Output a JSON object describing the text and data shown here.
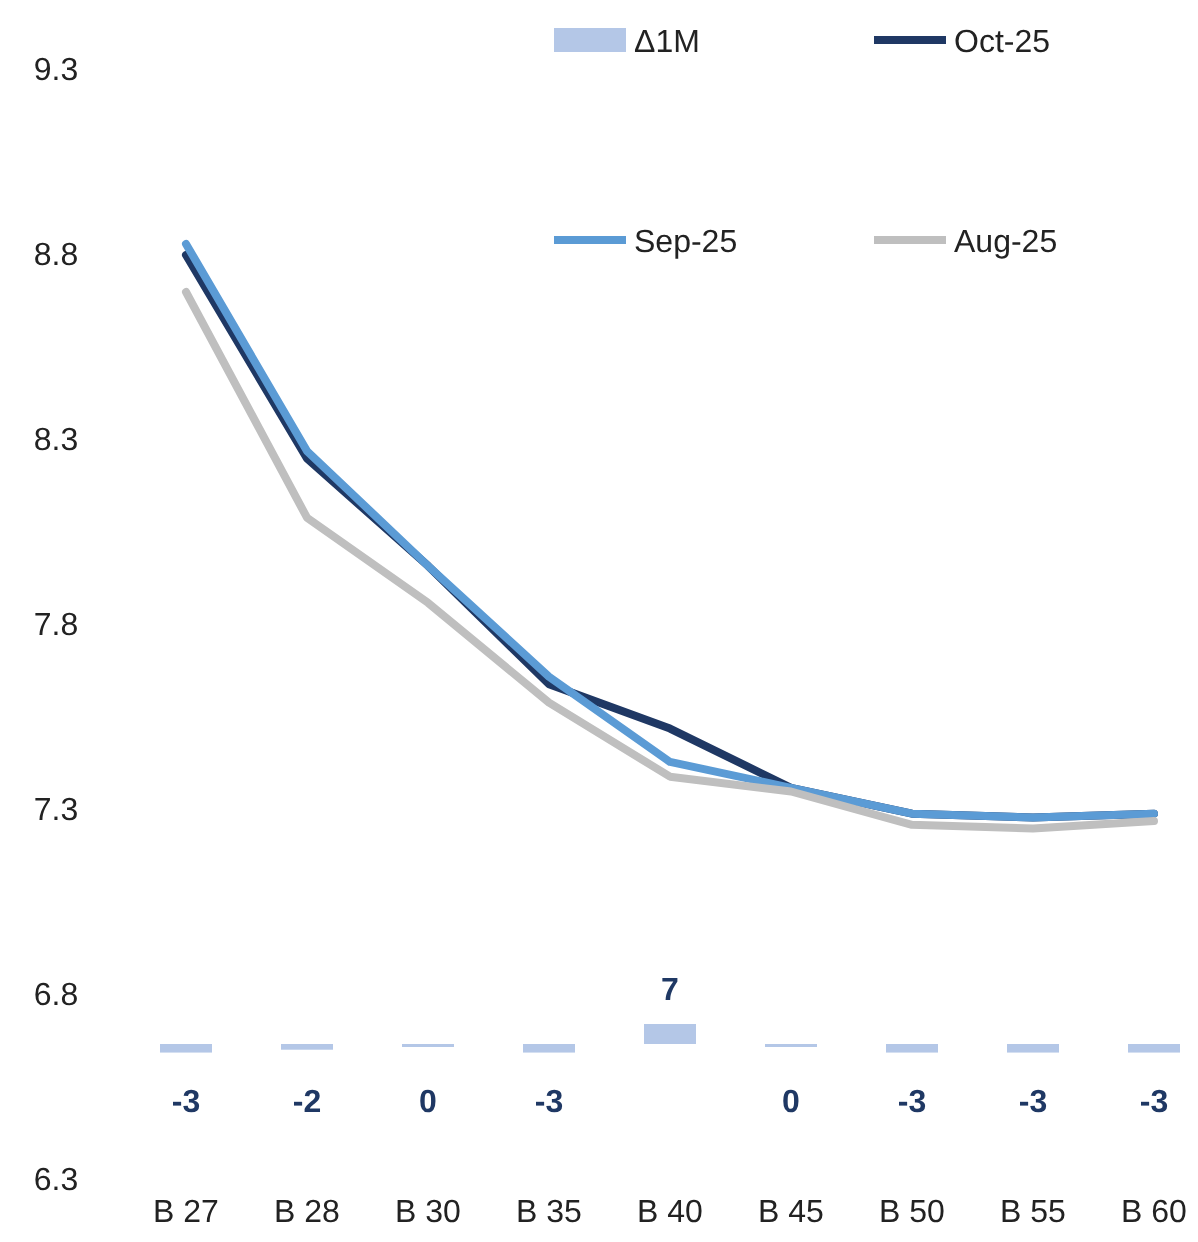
{
  "chart_data": {
    "type": "line",
    "categories": [
      "B 27",
      "B 28",
      "B 30",
      "B 35",
      "B 40",
      "B 45",
      "B 50",
      "B 55",
      "B 60"
    ],
    "ylim": [
      6.3,
      9.3
    ],
    "yticks": [
      6.3,
      6.8,
      7.3,
      7.8,
      8.3,
      8.8,
      9.3
    ],
    "legend": "top right",
    "grid": false,
    "series": [
      {
        "name": "Δ1M",
        "type": "bar",
        "axis": "y2",
        "color": "#b4c7e7",
        "values": [
          -3,
          -2,
          0,
          -3,
          7,
          0,
          -3,
          -3,
          -3
        ],
        "value_labels": [
          "-3",
          "-2",
          "0",
          "-3",
          "7",
          "0",
          "-3",
          "-3",
          "-3"
        ]
      },
      {
        "name": "Oct-25",
        "color": "#1f3864",
        "values": [
          8.8,
          8.25,
          7.96,
          7.64,
          7.52,
          7.36,
          7.29,
          7.28,
          7.29
        ]
      },
      {
        "name": "Sep-25",
        "color": "#5b9bd5",
        "values": [
          8.83,
          8.27,
          7.96,
          7.66,
          7.43,
          7.36,
          7.29,
          7.28,
          7.29
        ]
      },
      {
        "name": "Aug-25",
        "color": "#bfbfbf",
        "values": [
          8.7,
          8.09,
          7.86,
          7.59,
          7.39,
          7.35,
          7.26,
          7.25,
          7.27
        ]
      }
    ]
  }
}
